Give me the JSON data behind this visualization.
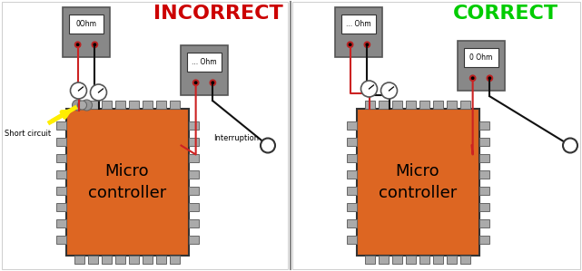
{
  "bg_color": "#ffffff",
  "left_title": "INCORRECT",
  "right_title": "CORRECT",
  "left_title_color": "#cc0000",
  "right_title_color": "#00cc00",
  "title_fontsize": 16,
  "chip_color": "#dd6622",
  "chip_text": "Micro\ncontroller",
  "chip_text_color": "black",
  "chip_text_fontsize": 13,
  "meter_body_color": "#888888",
  "meter_screen_color": "#dddddd",
  "pin_color": "#aaaaaa",
  "pin_edge_color": "#666666",
  "wire_red": "#cc2222",
  "wire_black": "#111111",
  "short_circuit_label": "Short circuit",
  "interruption_label": "Interruption",
  "yellow_color": "#ffee00",
  "blob_color": "#999999",
  "divider_color": "#888888",
  "probe_circle_color": "#ffffff",
  "gauge_color": "#ffffff",
  "small_text_fontsize": 6
}
